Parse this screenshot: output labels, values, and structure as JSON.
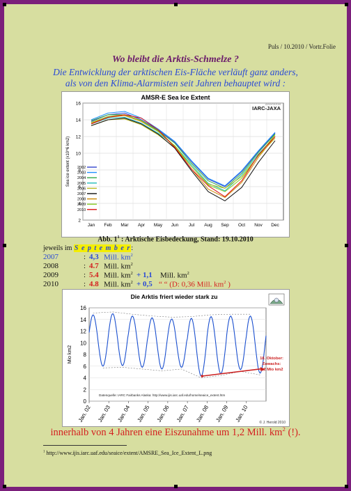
{
  "header": {
    "ref": "Puls / 10.2010 / Vortr.Folie"
  },
  "title": "Wo bleibt die Arktis-Schmelze ?",
  "subtitle_line1": "Die Entwicklung der arktischen Eis-Fläche verläuft ganz anders,",
  "subtitle_line2": "als von den Klima-Alarmisten seit Jahren behauptet wird :",
  "figure1": {
    "caption_prefix": "Abb. 1",
    "caption_sup": "1",
    "caption_rest": " : Arktische Eisbedeckung, Stand: 19.10.2010"
  },
  "september_intro": {
    "prefix": "jeweils im ",
    "word": "S e p t e m b e r",
    "suffix": ":"
  },
  "rows": [
    {
      "year": "2007",
      "colon": ":",
      "value": "4,3",
      "unit": "Mill. km",
      "sup": "2",
      "plus": "",
      "plus_unit": "",
      "note": ""
    },
    {
      "year": "2008",
      "colon": ":",
      "value": "4.7",
      "unit": "Mill. km",
      "sup": "2",
      "plus": "",
      "plus_unit": "",
      "note": ""
    },
    {
      "year": "2009",
      "colon": ":",
      "value": "5.4",
      "unit": "Mill. km",
      "sup": "2",
      "plus": "+ 1,1",
      "plus_unit": "Mill. km",
      "note": ""
    },
    {
      "year": "2010",
      "colon": ":",
      "value": "4.8",
      "unit": "Mill. km",
      "sup": "2",
      "plus": "+ 0,5",
      "plus_unit": "",
      "note": "“        “  (D: 0,36 Mill. km"
    }
  ],
  "conclusion": {
    "text": "innerhalb von 4 Jahren eine Eiszunahme um 1,2 Mill. km",
    "sup": "2",
    "tail": " (!)."
  },
  "footnote": {
    "num": "1",
    "text": " http://www.ijis.iarc.uaf.edu/seaice/extent/AMSRE_Sea_Ice_Extent_L.png"
  },
  "colors": {
    "frame": "#7b1f7b",
    "paper": "#d7dea0",
    "title": "#6a1a6a",
    "blue": "#2a4ad6",
    "red": "#d42020"
  },
  "chart_data": [
    {
      "type": "line",
      "title": "AMSR-E Sea Ice Extent",
      "badge": "IARC-JAXA",
      "stamp": "2010/10/18",
      "ylabel": "Sea ice extent (x10^6 km2)",
      "ylim": [
        2,
        16
      ],
      "yticks": [
        2,
        4,
        6,
        8,
        10,
        12,
        14,
        16
      ],
      "categories": [
        "Jan",
        "Feb",
        "Mar",
        "Apr",
        "May",
        "Jun",
        "Jul",
        "Aug",
        "Sep",
        "Oct",
        "Nov",
        "Dec"
      ],
      "legend_position": "bottom-left",
      "series": [
        {
          "name": "2002",
          "color": "#3344cc",
          "values": [
            13.8,
            14.6,
            14.8,
            14.0,
            12.8,
            11.3,
            9.0,
            6.9,
            6.0,
            7.8,
            10.2,
            12.4
          ]
        },
        {
          "name": "2003",
          "color": "#1f8fff",
          "values": [
            14.0,
            14.8,
            15.0,
            14.2,
            12.9,
            11.4,
            9.1,
            7.0,
            6.1,
            7.9,
            10.3,
            12.5
          ]
        },
        {
          "name": "2004",
          "color": "#33aa44",
          "values": [
            13.9,
            14.6,
            14.6,
            13.9,
            12.7,
            11.2,
            8.8,
            6.7,
            5.8,
            7.6,
            10.1,
            12.3
          ]
        },
        {
          "name": "2005",
          "color": "#22bbbb",
          "values": [
            13.5,
            14.2,
            14.3,
            13.6,
            12.4,
            10.9,
            8.6,
            6.4,
            5.5,
            7.4,
            9.9,
            12.0
          ]
        },
        {
          "name": "2006",
          "color": "#bbbb22",
          "values": [
            13.3,
            14.0,
            14.1,
            13.4,
            12.2,
            10.7,
            8.4,
            6.3,
            5.8,
            7.2,
            9.7,
            11.8
          ]
        },
        {
          "name": "2007",
          "color": "#111111",
          "values": [
            13.3,
            14.0,
            14.2,
            13.5,
            12.3,
            10.6,
            7.9,
            5.4,
            4.3,
            5.9,
            8.9,
            11.5
          ]
        },
        {
          "name": "2008",
          "color": "#cc8800",
          "values": [
            13.6,
            14.3,
            14.5,
            13.8,
            12.6,
            10.8,
            8.1,
            5.7,
            4.7,
            6.5,
            9.5,
            12.0
          ]
        },
        {
          "name": "2009",
          "color": "#88cc22",
          "values": [
            13.7,
            14.4,
            14.6,
            13.9,
            12.6,
            10.9,
            8.4,
            6.2,
            5.4,
            7.0,
            9.7,
            12.2
          ]
        },
        {
          "name": "2010",
          "color": "#dd1111",
          "values": [
            13.5,
            14.3,
            14.6,
            14.2,
            12.8,
            10.7,
            8.1,
            6.1,
            4.8,
            6.7,
            9.8,
            12.0
          ]
        }
      ]
    },
    {
      "type": "line",
      "title": "Die Arktis friert wieder stark zu",
      "ylabel": "Mio km2",
      "ylim": [
        0,
        16
      ],
      "yticks": [
        0,
        2,
        4,
        6,
        8,
        10,
        12,
        14,
        16
      ],
      "x_labels": [
        "Jan. 02",
        "Jan. 03",
        "Jan. 04",
        "Jan. 05",
        "Jan. 06",
        "Jan. 07",
        "Jan. 08",
        "Jan. 09",
        "Jan. 10"
      ],
      "source_note": "Datenquelle: IARC Fairbanks Alaska:  http://www.ijis.iarc.uaf.edu/home/seaice_extent.htm",
      "copyright": "© J. Herold 2010",
      "annotation": {
        "lines": [
          "18. Oktober:",
          "Zuwachs:",
          "1,2 Mio km2"
        ],
        "color": "#cc2222"
      },
      "annual_max": [
        14.8,
        15.0,
        14.6,
        14.3,
        14.1,
        14.2,
        14.5,
        14.6,
        14.6
      ],
      "annual_min": [
        6.0,
        6.1,
        5.8,
        5.5,
        5.8,
        4.3,
        4.7,
        5.4,
        4.8
      ],
      "trend_from": 4.3,
      "trend_to": 5.5
    }
  ]
}
